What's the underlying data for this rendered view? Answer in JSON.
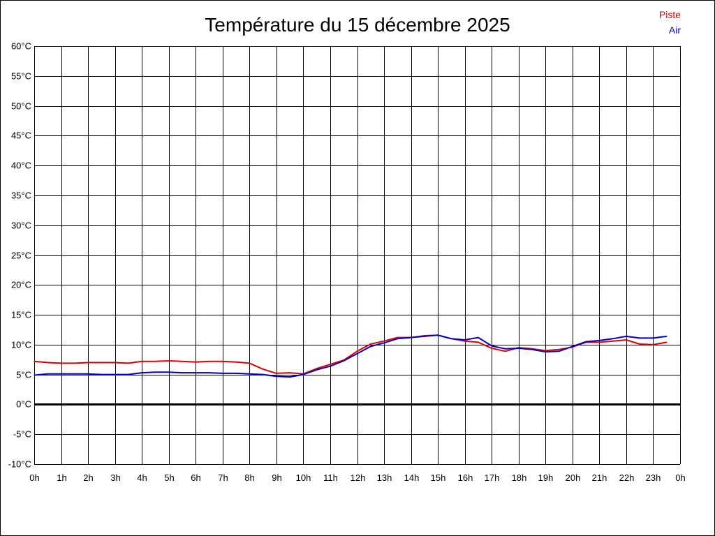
{
  "chart_data": {
    "type": "line",
    "title": "Température du 15 décembre 2025",
    "xlabel": "",
    "ylabel": "",
    "x_tick_labels": [
      "0h",
      "1h",
      "2h",
      "3h",
      "4h",
      "5h",
      "6h",
      "7h",
      "8h",
      "9h",
      "10h",
      "11h",
      "12h",
      "13h",
      "14h",
      "15h",
      "16h",
      "17h",
      "18h",
      "19h",
      "20h",
      "21h",
      "22h",
      "23h",
      "0h"
    ],
    "y_tick_labels": [
      "60°C",
      "55°C",
      "50°C",
      "45°C",
      "40°C",
      "35°C",
      "30°C",
      "25°C",
      "20°C",
      "15°C",
      "10°C",
      "5°C",
      "0°C",
      "-5°C",
      "-10°C"
    ],
    "xlim": [
      0,
      24
    ],
    "ylim": [
      -10,
      60
    ],
    "grid": true,
    "legend_position": "top-right",
    "zero_line": true,
    "x": [
      0,
      0.5,
      1,
      1.5,
      2,
      2.5,
      3,
      3.5,
      4,
      4.5,
      5,
      5.5,
      6,
      6.5,
      7,
      7.5,
      8,
      8.5,
      9,
      9.5,
      10,
      10.5,
      11,
      11.5,
      12,
      12.5,
      13,
      13.5,
      14,
      14.5,
      15,
      15.5,
      16,
      16.5,
      17,
      17.5,
      18,
      18.5,
      19,
      19.5,
      20,
      20.5,
      21,
      21.5,
      22,
      22.5,
      23,
      23.5
    ],
    "series": [
      {
        "name": "Piste",
        "color": "#e00000",
        "values": [
          7.2,
          7.0,
          6.9,
          6.9,
          7.0,
          7.0,
          7.0,
          6.9,
          7.2,
          7.2,
          7.3,
          7.2,
          7.1,
          7.2,
          7.2,
          7.1,
          6.9,
          5.9,
          5.2,
          5.3,
          5.1,
          6.0,
          6.7,
          7.4,
          8.9,
          10.1,
          10.6,
          11.2,
          11.2,
          11.5,
          11.6,
          11.0,
          10.6,
          10.4,
          9.4,
          8.9,
          9.5,
          9.3,
          9.0,
          9.2,
          9.6,
          10.4,
          10.4,
          10.6,
          10.8,
          10.1,
          10.0,
          10.4
        ]
      },
      {
        "name": "Air",
        "color": "#0000c8",
        "values": [
          4.9,
          5.1,
          5.1,
          5.1,
          5.1,
          5.0,
          5.0,
          5.0,
          5.3,
          5.4,
          5.4,
          5.3,
          5.3,
          5.3,
          5.2,
          5.2,
          5.1,
          5.0,
          4.7,
          4.6,
          5.0,
          5.8,
          6.4,
          7.3,
          8.5,
          9.7,
          10.3,
          11.0,
          11.2,
          11.4,
          11.6,
          11.0,
          10.8,
          11.2,
          9.8,
          9.3,
          9.4,
          9.2,
          8.8,
          8.9,
          9.7,
          10.5,
          10.7,
          11.0,
          11.4,
          11.1,
          11.1,
          11.4
        ]
      }
    ]
  }
}
